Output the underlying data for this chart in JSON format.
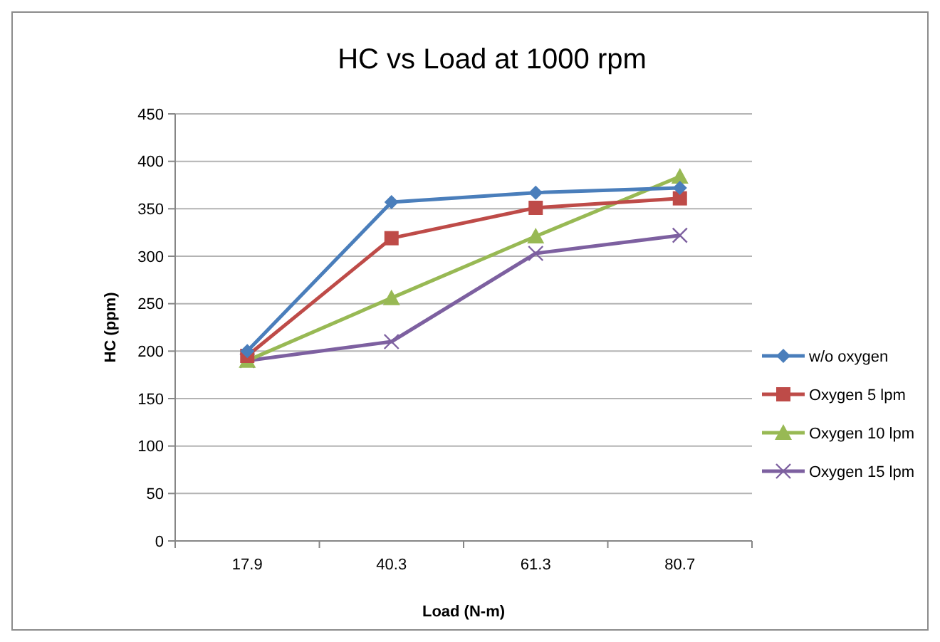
{
  "chart_data": {
    "type": "line",
    "title": "HC vs Load at 1000 rpm",
    "xlabel": "Load (N-m)",
    "ylabel": "HC (ppm)",
    "categories": [
      "17.9",
      "40.3",
      "61.3",
      "80.7"
    ],
    "ylim": [
      0,
      450
    ],
    "yticks": [
      0,
      50,
      100,
      150,
      200,
      250,
      300,
      350,
      400,
      450
    ],
    "grid": "y",
    "legend": "right",
    "series": [
      {
        "name": "w/o oxygen",
        "color": "#4a7ebb",
        "marker": "diamond",
        "values": [
          200,
          357,
          367,
          372
        ]
      },
      {
        "name": "Oxygen 5 lpm",
        "color": "#be4b48",
        "marker": "square",
        "values": [
          195,
          319,
          351,
          361
        ]
      },
      {
        "name": "Oxygen 10 lpm",
        "color": "#98b954",
        "marker": "triangle",
        "values": [
          190,
          256,
          321,
          384
        ]
      },
      {
        "name": "Oxygen 15 lpm",
        "color": "#7d60a0",
        "marker": "cross",
        "values": [
          190,
          210,
          303,
          322
        ]
      }
    ]
  }
}
